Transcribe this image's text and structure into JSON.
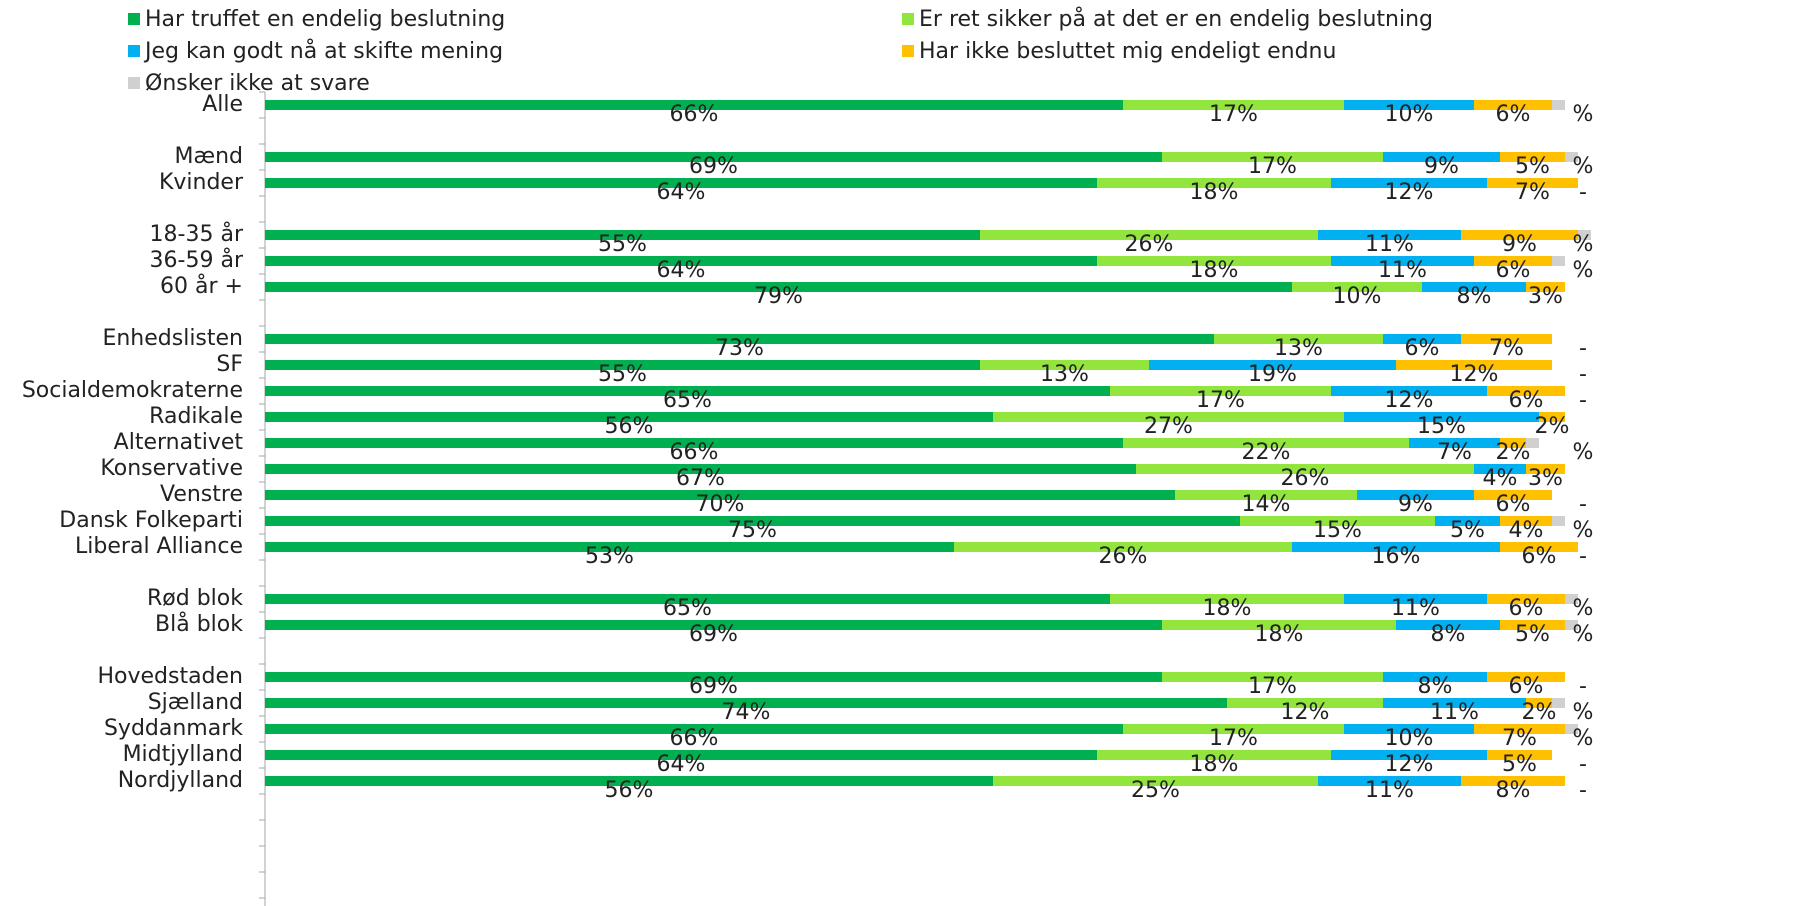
{
  "chart_data": {
    "type": "bar",
    "orientation": "horizontal",
    "stacked": true,
    "unit": "%",
    "legend": {
      "placement": "top"
    },
    "grid": false,
    "xlim": [
      0,
      100
    ],
    "categories": [
      "Alle",
      "Mænd",
      "Kvinder",
      "18-35 år",
      "36-59 år",
      "60 år +",
      "Enhedslisten",
      "SF",
      "Socialdemokraterne",
      "Radikale",
      "Alternativet",
      "Konservative",
      "Venstre",
      "Dansk Folkeparti",
      "Liberal Alliance",
      "Rød blok",
      "Blå blok",
      "Hovedstaden",
      "Sjælland",
      "Syddanmark",
      "Midtjylland",
      "Nordjylland"
    ],
    "series": [
      {
        "name": "Har truffet en endelig beslutning",
        "color": "#00b050",
        "values": [
          66,
          69,
          64,
          55,
          64,
          79,
          73,
          55,
          65,
          56,
          66,
          67,
          70,
          75,
          53,
          65,
          69,
          69,
          74,
          66,
          64,
          56
        ],
        "labels": [
          "66%",
          "69%",
          "64%",
          "55%",
          "64%",
          "79%",
          "73%",
          "55%",
          "65%",
          "56%",
          "66%",
          "67%",
          "70%",
          "75%",
          "53%",
          "65%",
          "69%",
          "69%",
          "74%",
          "66%",
          "64%",
          "56%"
        ]
      },
      {
        "name": "Er ret sikker på at det er en endelig beslutning",
        "color": "#92e53c",
        "values": [
          17,
          17,
          18,
          26,
          18,
          10,
          13,
          13,
          17,
          27,
          22,
          26,
          14,
          15,
          26,
          18,
          18,
          17,
          12,
          17,
          18,
          25
        ],
        "labels": [
          "17%",
          "17%",
          "18%",
          "26%",
          "18%",
          "10%",
          "13%",
          "13%",
          "17%",
          "27%",
          "22%",
          "26%",
          "14%",
          "15%",
          "26%",
          "18%",
          "18%",
          "17%",
          "12%",
          "17%",
          "18%",
          "25%"
        ]
      },
      {
        "name": "Jeg kan godt nå at skifte mening",
        "color": "#00b0f0",
        "values": [
          10,
          9,
          12,
          11,
          11,
          8,
          6,
          19,
          12,
          15,
          7,
          4,
          9,
          5,
          16,
          11,
          8,
          8,
          11,
          10,
          12,
          11
        ],
        "labels": [
          "10%",
          "9%",
          "12%",
          "11%",
          "11%",
          "8%",
          "6%",
          "19%",
          "12%",
          "15%",
          "7%",
          "4%",
          "9%",
          "5%",
          "16%",
          "11%",
          "8%",
          "8%",
          "11%",
          "10%",
          "12%",
          "11%"
        ]
      },
      {
        "name": "Har ikke besluttet mig endeligt endnu",
        "color": "#ffc000",
        "values": [
          6,
          5,
          7,
          9,
          6,
          3,
          7,
          12,
          6,
          2,
          2,
          3,
          6,
          4,
          6,
          6,
          5,
          6,
          2,
          7,
          5,
          8
        ],
        "labels": [
          "6%",
          "5%",
          "7%",
          "9%",
          "6%",
          "3%",
          "7%",
          "12%",
          "6%",
          "2%",
          "2%",
          "3%",
          "6%",
          "4%",
          "6%",
          "6%",
          "5%",
          "6%",
          "2%",
          "7%",
          "5%",
          "8%"
        ]
      },
      {
        "name": "Ønsker ikke at svare",
        "color": "#d0d0d0",
        "values": [
          1,
          1,
          0,
          1,
          1,
          0,
          0,
          0,
          0,
          0,
          1,
          0,
          0,
          1,
          0,
          1,
          1,
          0,
          1,
          1,
          0,
          0
        ],
        "labels": [
          "%",
          "%",
          "-",
          "%",
          "%",
          "",
          "-",
          "-",
          "-",
          "",
          "%",
          "",
          "-",
          "%",
          "-",
          "%",
          "%",
          "-",
          "%",
          "%",
          "-",
          "-"
        ]
      }
    ]
  }
}
